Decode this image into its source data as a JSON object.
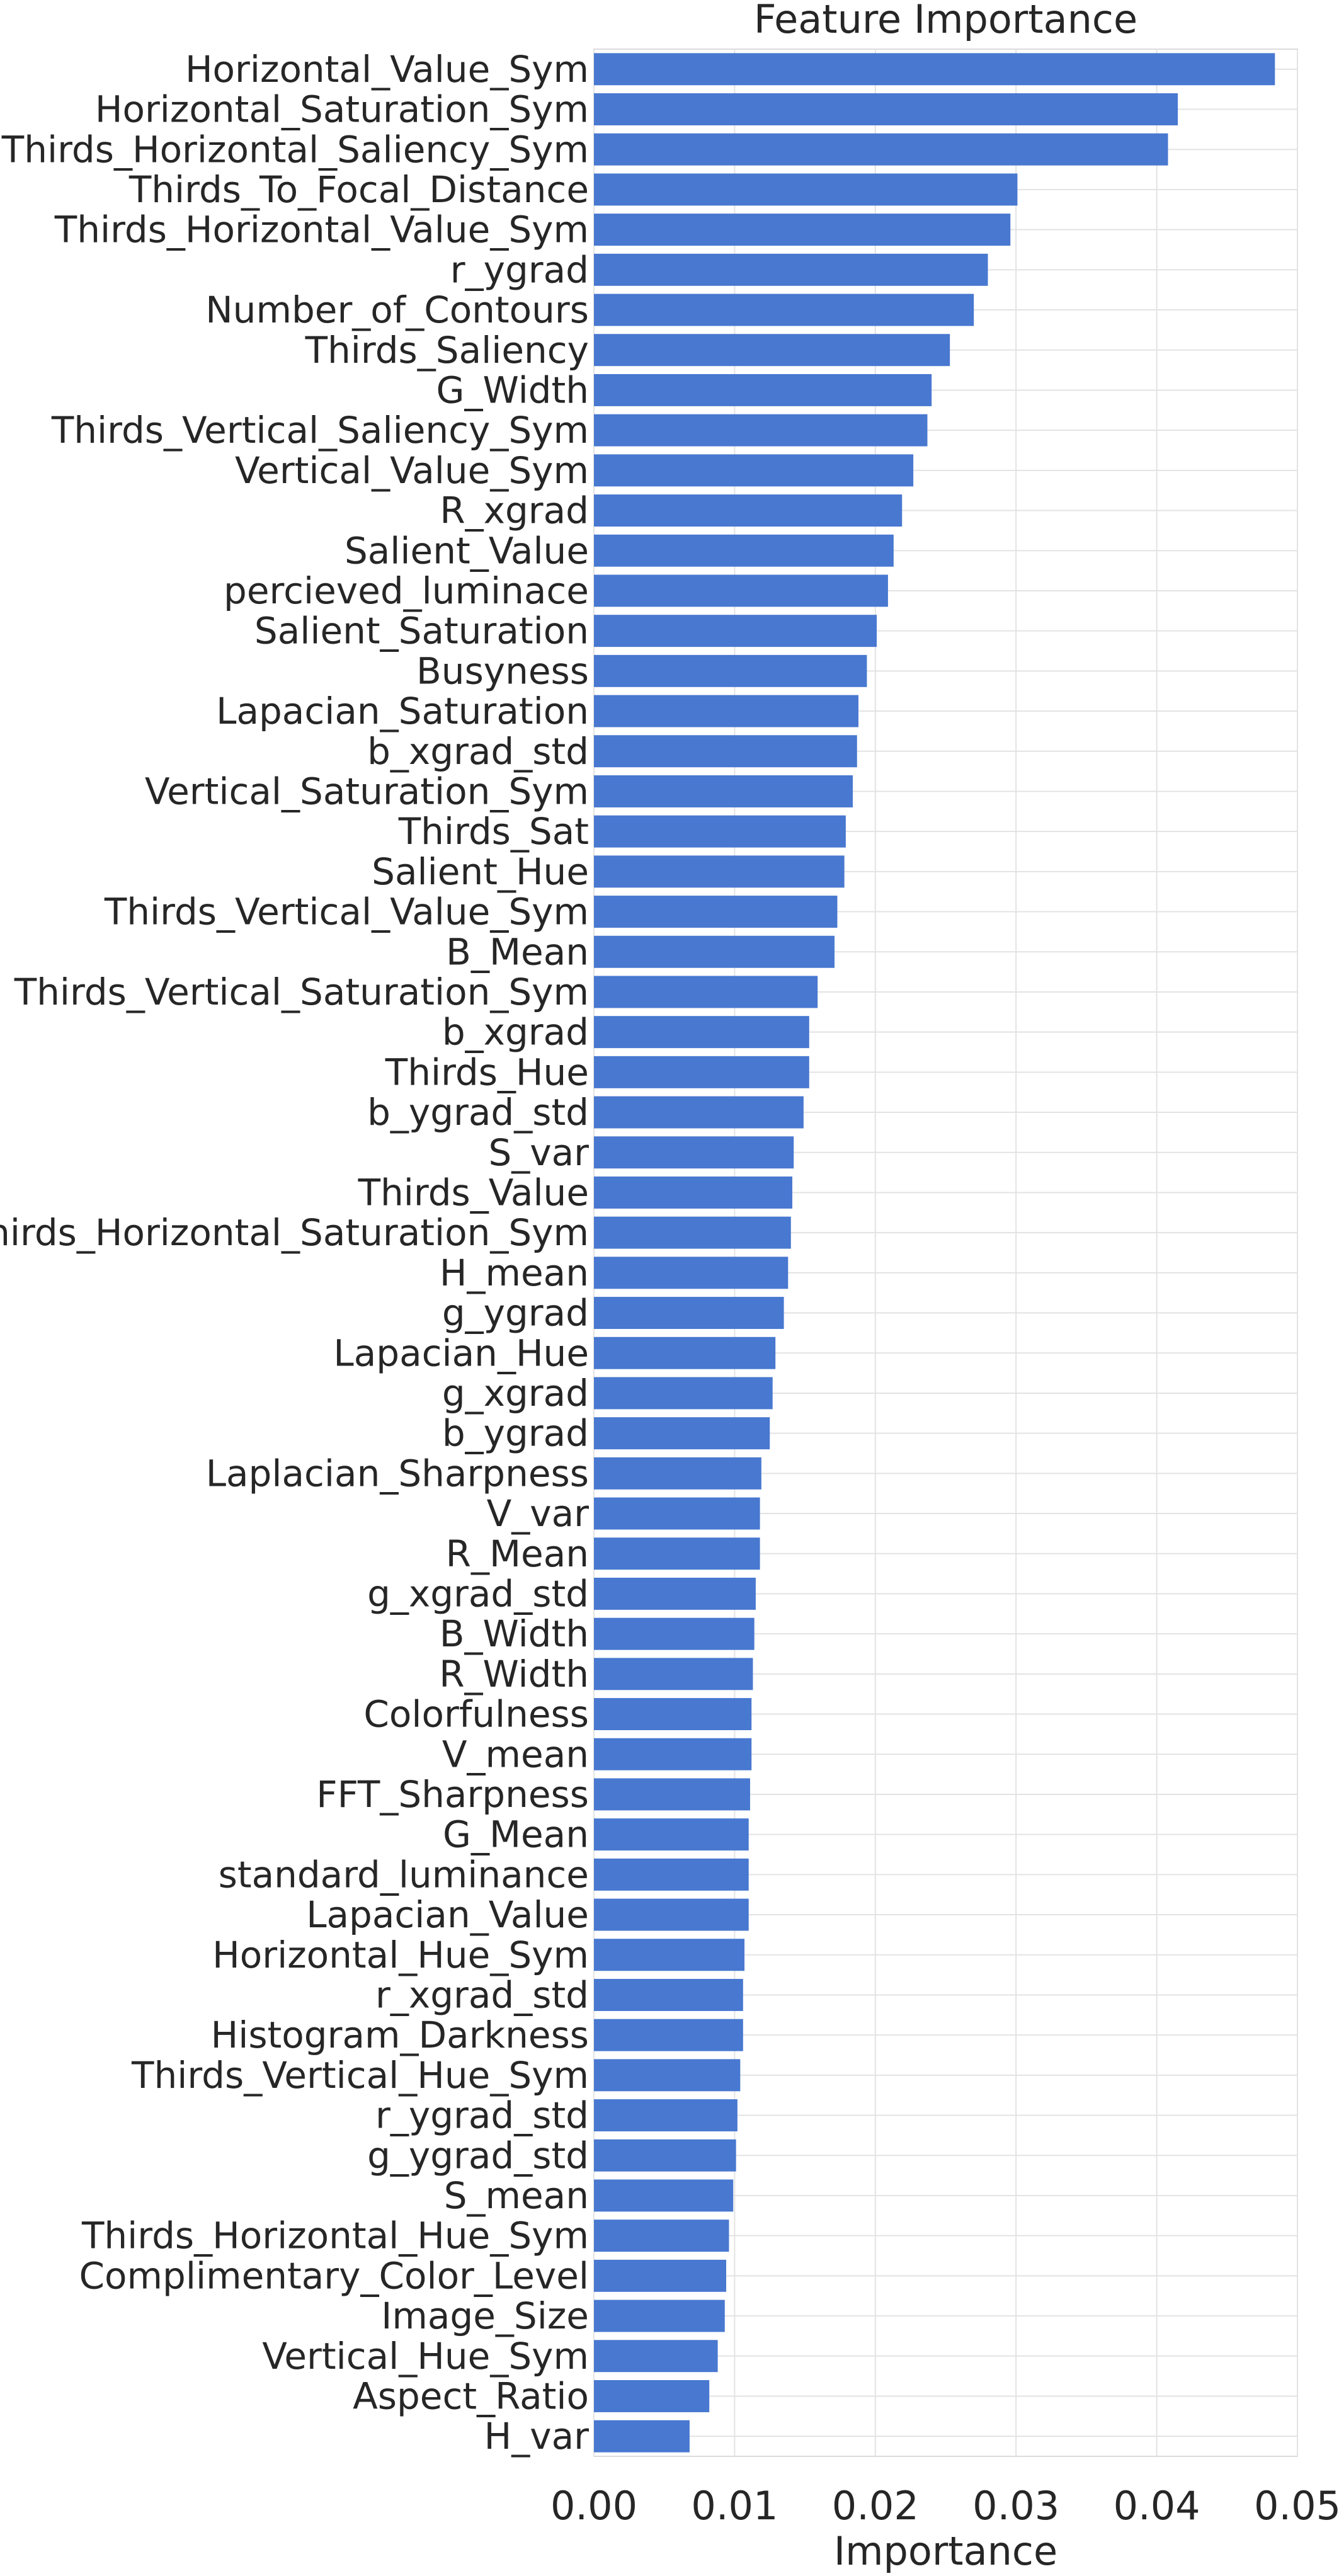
{
  "chart_data": {
    "type": "bar",
    "orientation": "horizontal",
    "title": "Feature Importance",
    "xlabel": "Importance",
    "ylabel": "",
    "xlim": [
      0,
      0.05
    ],
    "xticks": [
      "0.00",
      "0.01",
      "0.02",
      "0.03",
      "0.04",
      "0.05"
    ],
    "grid": true,
    "bar_color": "#4878d0",
    "categories": [
      "Horizontal_Value_Sym",
      "Horizontal_Saturation_Sym",
      "Thirds_Horizontal_Saliency_Sym",
      "Thirds_To_Focal_Distance",
      "Thirds_Horizontal_Value_Sym",
      "r_ygrad",
      "Number_of_Contours",
      "Thirds_Saliency",
      "G_Width",
      "Thirds_Vertical_Saliency_Sym",
      "Vertical_Value_Sym",
      "R_xgrad",
      "Salient_Value",
      "percieved_luminace",
      "Salient_Saturation",
      "Busyness",
      "Lapacian_Saturation",
      "b_xgrad_std",
      "Vertical_Saturation_Sym",
      "Thirds_Sat",
      "Salient_Hue",
      "Thirds_Vertical_Value_Sym",
      "B_Mean",
      "Thirds_Vertical_Saturation_Sym",
      "b_xgrad",
      "Thirds_Hue",
      "b_ygrad_std",
      "S_var",
      "Thirds_Value",
      "Thirds_Horizontal_Saturation_Sym",
      "H_mean",
      "g_ygrad",
      "Lapacian_Hue",
      "g_xgrad",
      "b_ygrad",
      "Laplacian_Sharpness",
      "V_var",
      "R_Mean",
      "g_xgrad_std",
      "B_Width",
      "R_Width",
      "Colorfulness",
      "V_mean",
      "FFT_Sharpness",
      "G_Mean",
      "standard_luminance",
      "Lapacian_Value",
      "Horizontal_Hue_Sym",
      "r_xgrad_std",
      "Histogram_Darkness",
      "Thirds_Vertical_Hue_Sym",
      "r_ygrad_std",
      "g_ygrad_std",
      "S_mean",
      "Thirds_Horizontal_Hue_Sym",
      "Complimentary_Color_Level",
      "Image_Size",
      "Vertical_Hue_Sym",
      "Aspect_Ratio",
      "H_var"
    ],
    "values": [
      0.0484,
      0.0415,
      0.0408,
      0.0301,
      0.0296,
      0.028,
      0.027,
      0.0253,
      0.024,
      0.0237,
      0.0227,
      0.0219,
      0.0213,
      0.0209,
      0.0201,
      0.0194,
      0.0188,
      0.0187,
      0.0184,
      0.0179,
      0.0178,
      0.0173,
      0.0171,
      0.0159,
      0.0153,
      0.0153,
      0.0149,
      0.0142,
      0.0141,
      0.014,
      0.0138,
      0.0135,
      0.0129,
      0.0127,
      0.0125,
      0.0119,
      0.0118,
      0.0118,
      0.0115,
      0.0114,
      0.0113,
      0.0112,
      0.0112,
      0.0111,
      0.011,
      0.011,
      0.011,
      0.0107,
      0.0106,
      0.0106,
      0.0104,
      0.0102,
      0.0101,
      0.0099,
      0.0096,
      0.0094,
      0.0093,
      0.0088,
      0.0082,
      0.0068
    ]
  }
}
